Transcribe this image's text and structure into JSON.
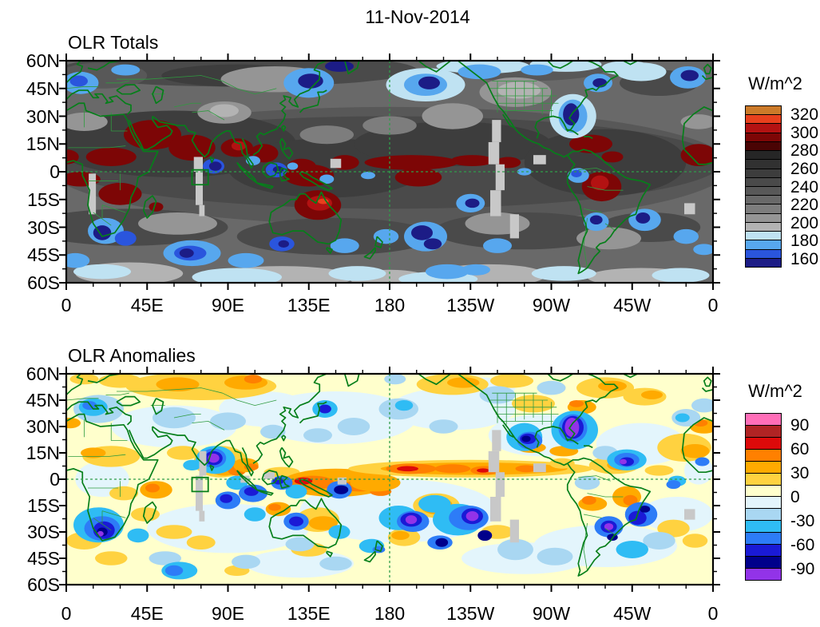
{
  "figure": {
    "title": "11-Nov-2014"
  },
  "map_style": {
    "coastline": "#067f1a",
    "country_borders": "#2f9b3f",
    "dashed_lines": "#2f9e4a",
    "missing_data": "#c8c8c8",
    "study_box": "#067f1a",
    "frame": "#000000",
    "background": "#ffffff"
  },
  "chart_data": [
    {
      "type": "heatmap",
      "title": "OLR Totals",
      "units_label": "W/m^2",
      "x_ticks": [
        "0",
        "45E",
        "90E",
        "135E",
        "180",
        "135W",
        "90W",
        "45W",
        "0"
      ],
      "y_ticks": [
        "60N",
        "45N",
        "30N",
        "15N",
        "0",
        "15S",
        "30S",
        "45S",
        "60S"
      ],
      "lon_range": [
        0,
        360
      ],
      "lat_range": [
        60,
        -60
      ],
      "grid": "dashed green reference lines at the equator and the 180 meridian",
      "colorbar": {
        "tick_labels": [
          "320",
          "300",
          "280",
          "260",
          "240",
          "220",
          "200",
          "180",
          "160"
        ],
        "band_step_wm2": 10,
        "value_range": [
          150,
          330
        ],
        "colors_top_to_bottom": [
          "#cc7a29",
          "#e8401d",
          "#b31212",
          "#7d0606",
          "#4a0404",
          "#262626",
          "#313131",
          "#3d3d3d",
          "#4a4a4a",
          "#585858",
          "#696969",
          "#7d7d7d",
          "#959595",
          "#b3b3b3",
          "#bfe2f2",
          "#57a7ee",
          "#2a55dd",
          "#1c1c86"
        ]
      },
      "notable_features": "dark-red high OLR along tropics (Africa, Arabia, India, Maritime Continent, N Australia, equatorial Pacific, S America); deep-blue low OLR cells in N Pacific, NW Atlantic, S Indian and S Pacific oceans; light-gray missing-data strips near 73E, 120W, 95W and SW Africa; small green study box near 70-79E, 1N-7S"
    },
    {
      "type": "heatmap",
      "title": "OLR Anomalies",
      "units_label": "W/m^2",
      "x_ticks": [
        "0",
        "45E",
        "90E",
        "135E",
        "180",
        "135W",
        "90W",
        "45W",
        "0"
      ],
      "y_ticks": [
        "60N",
        "45N",
        "30N",
        "15N",
        "0",
        "15S",
        "30S",
        "45S",
        "60S"
      ],
      "lon_range": [
        0,
        360
      ],
      "lat_range": [
        60,
        -60
      ],
      "grid": "dashed green reference lines at the equator and the 180 meridian",
      "colorbar": {
        "tick_labels": [
          "90",
          "60",
          "30",
          "0",
          "-30",
          "-60",
          "-90"
        ],
        "band_step_wm2": 15,
        "value_range": [
          -105,
          105
        ],
        "colors_top_to_bottom": [
          "#ff6eb8",
          "#b02424",
          "#dd0a0a",
          "#ff8000",
          "#ffaa00",
          "#ffd240",
          "#ffffcc",
          "#e3f5fc",
          "#a9d7f2",
          "#2fbcf4",
          "#2d7cf7",
          "#1a1ad6",
          "#00008b",
          "#9233e8"
        ]
      },
      "notable_features": "orange/red positive anomaly band along the Pacific ITCZ and Maritime Continent; purple/dark-blue negative anomaly cells over India, W Atlantic, Mexico, S Africa, SW Pacific and S America; gold positive anomalies over Siberia, Alaska and NE Canada; same gray missing-data strips and green study box as top panel"
    }
  ]
}
